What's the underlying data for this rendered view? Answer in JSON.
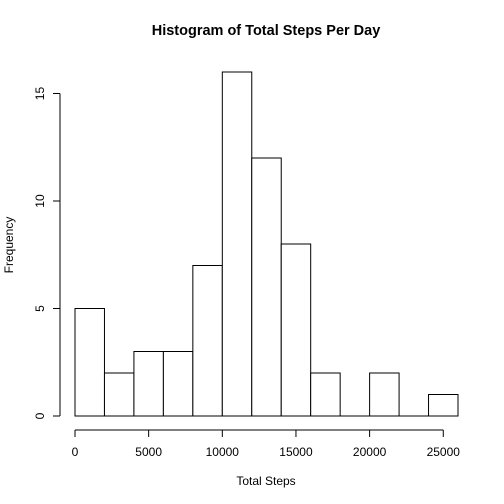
{
  "chart_data": {
    "type": "bar",
    "title": "Histogram of Total Steps Per Day",
    "xlabel": "Total Steps",
    "ylabel": "Frequency",
    "bin_edges": [
      0,
      2000,
      4000,
      6000,
      8000,
      10000,
      12000,
      14000,
      16000,
      18000,
      20000,
      22000,
      24000,
      26000
    ],
    "values": [
      5,
      2,
      3,
      3,
      7,
      16,
      12,
      8,
      2,
      0,
      2,
      0,
      1
    ],
    "xlim": [
      0,
      26000
    ],
    "ylim": [
      0,
      16
    ],
    "x_ticks": [
      0,
      5000,
      10000,
      15000,
      20000,
      25000
    ],
    "x_tick_labels": [
      "0",
      "5000",
      "10000",
      "15000",
      "20000",
      "25000"
    ],
    "y_ticks": [
      0,
      5,
      10,
      15
    ],
    "y_tick_labels": [
      "0",
      "5",
      "10",
      "15"
    ],
    "bar_fill": "#ffffff",
    "bar_stroke": "#000000",
    "grid": false
  }
}
